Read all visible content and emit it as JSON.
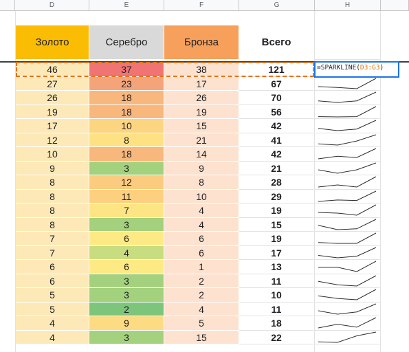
{
  "columns": [
    "D",
    "E",
    "F",
    "G",
    "H"
  ],
  "headers": {
    "gold": "Золото",
    "silver": "Серебро",
    "bronze": "Бронза",
    "total": "Всего"
  },
  "header_colors": {
    "gold": "#fbbc04",
    "silver": "#d9d9d9",
    "bronze": "#f6a05b"
  },
  "active_formula": {
    "prefix": "=SPARKLINE(",
    "range": "D3:G3",
    "suffix": ")"
  },
  "rows": [
    {
      "gold": 46,
      "silver": 37,
      "bronze": 38,
      "total": 121,
      "silver_color": "#f07474"
    },
    {
      "gold": 27,
      "silver": 23,
      "bronze": 17,
      "total": 67,
      "silver_color": "#f5a47a"
    },
    {
      "gold": 26,
      "silver": 18,
      "bronze": 26,
      "total": 70,
      "silver_color": "#f8b77c"
    },
    {
      "gold": 19,
      "silver": 18,
      "bronze": 19,
      "total": 56,
      "silver_color": "#f8b77c"
    },
    {
      "gold": 17,
      "silver": 10,
      "bronze": 15,
      "total": 42,
      "silver_color": "#fcd581"
    },
    {
      "gold": 12,
      "silver": 8,
      "bronze": 21,
      "total": 41,
      "silver_color": "#fee183"
    },
    {
      "gold": 10,
      "silver": 18,
      "bronze": 14,
      "total": 42,
      "silver_color": "#f8b77c"
    },
    {
      "gold": 9,
      "silver": 3,
      "bronze": 9,
      "total": 21,
      "silver_color": "#a4d17d"
    },
    {
      "gold": 8,
      "silver": 12,
      "bronze": 8,
      "total": 28,
      "silver_color": "#fbcb7f"
    },
    {
      "gold": 8,
      "silver": 11,
      "bronze": 10,
      "total": 29,
      "silver_color": "#fcd07f"
    },
    {
      "gold": 8,
      "silver": 7,
      "bronze": 4,
      "total": 19,
      "silver_color": "#fee583"
    },
    {
      "gold": 8,
      "silver": 3,
      "bronze": 4,
      "total": 15,
      "silver_color": "#a4d17d"
    },
    {
      "gold": 7,
      "silver": 6,
      "bronze": 6,
      "total": 19,
      "silver_color": "#feea85"
    },
    {
      "gold": 7,
      "silver": 4,
      "bronze": 6,
      "total": 17,
      "silver_color": "#c8dc80"
    },
    {
      "gold": 6,
      "silver": 6,
      "bronze": 1,
      "total": 13,
      "silver_color": "#feea85"
    },
    {
      "gold": 6,
      "silver": 3,
      "bronze": 2,
      "total": 11,
      "silver_color": "#a4d17d"
    },
    {
      "gold": 5,
      "silver": 3,
      "bronze": 2,
      "total": 10,
      "silver_color": "#a4d17d"
    },
    {
      "gold": 5,
      "silver": 2,
      "bronze": 4,
      "total": 11,
      "silver_color": "#7cc57a"
    },
    {
      "gold": 4,
      "silver": 9,
      "bronze": 5,
      "total": 18,
      "silver_color": "#fddb82"
    },
    {
      "gold": 4,
      "silver": 3,
      "bronze": 15,
      "total": 22,
      "silver_color": "#a4d17d"
    }
  ],
  "colors": {
    "gold_cell": "#fde9b7",
    "bronze_cell": "#fce2cf",
    "active_border": "#1a73e8",
    "copy_border": "#e8710a",
    "range_text": "#e37400"
  }
}
